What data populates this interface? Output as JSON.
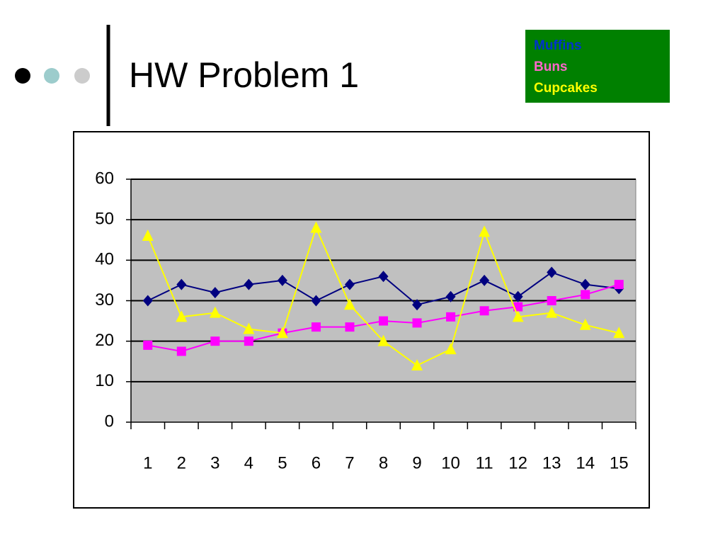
{
  "slide_title": "HW Problem 1",
  "chart_data": {
    "type": "line",
    "categories": [
      "1",
      "2",
      "3",
      "4",
      "5",
      "6",
      "7",
      "8",
      "9",
      "10",
      "11",
      "12",
      "13",
      "14",
      "15"
    ],
    "series": [
      {
        "name": "Muffins",
        "color": "#000080",
        "marker": "diamond",
        "values": [
          30,
          34,
          32,
          34,
          35,
          30,
          34,
          36,
          29,
          31,
          35,
          31,
          37,
          34,
          33
        ]
      },
      {
        "name": "Buns",
        "color": "#ff00ff",
        "marker": "square",
        "values": [
          19,
          17.5,
          20,
          20,
          22,
          23.5,
          23.5,
          25,
          24.5,
          26,
          27.5,
          28.5,
          30,
          31.5,
          34
        ]
      },
      {
        "name": "Cupcakes",
        "color": "#ffff00",
        "marker": "triangle",
        "values": [
          46,
          26,
          27,
          23,
          22,
          48,
          29,
          20,
          14,
          18,
          47,
          26,
          27,
          24,
          22
        ]
      }
    ],
    "legend_colors": [
      "#0033cc",
      "#ff66cc",
      "#ffff00"
    ],
    "ylim": [
      0,
      60
    ],
    "yticks": [
      0,
      10,
      20,
      30,
      40,
      50,
      60
    ],
    "grid": true,
    "plot_background": "#c0c0c0",
    "legend_background": "#008000"
  }
}
